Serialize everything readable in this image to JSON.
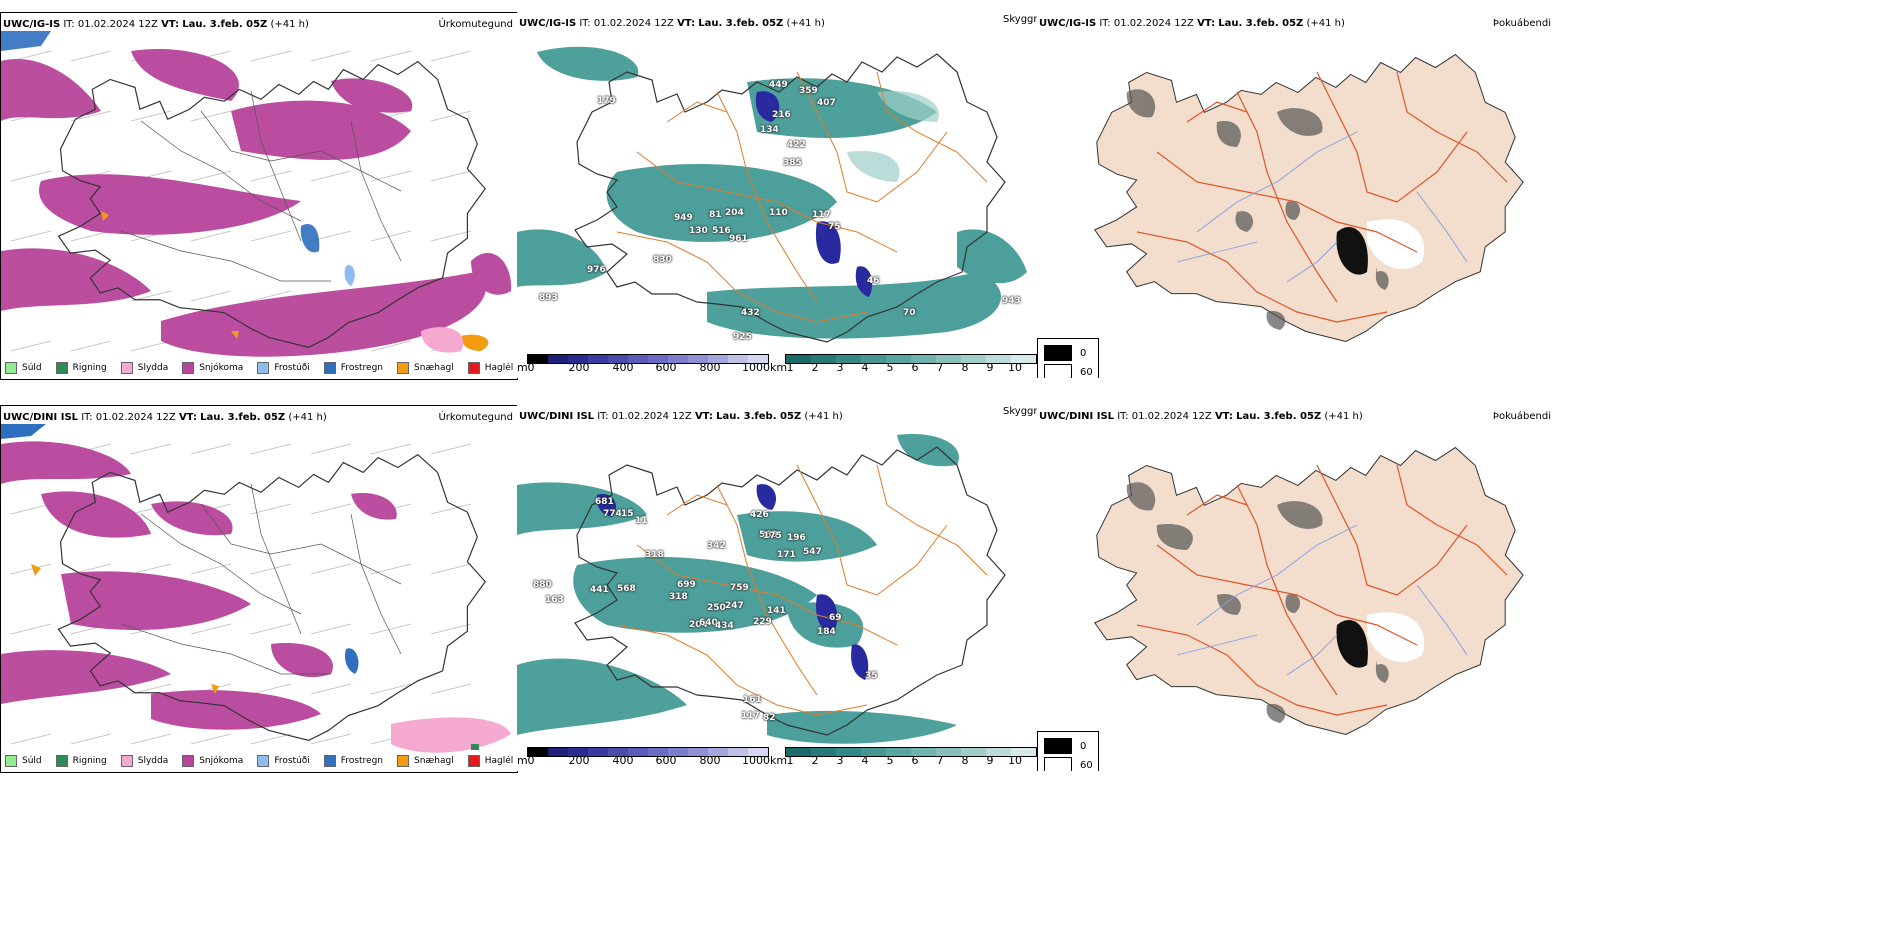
{
  "rows": [
    {
      "model": "UWC/IG-IS",
      "it": "IT: 01.02.2024 12Z",
      "vt_label": "VT:",
      "vt": "Lau. 3.feb. 05Z",
      "lead": "(+41 h)",
      "panels": {
        "precip": "Úrkomutegund",
        "visibility": "Skyggni",
        "fog": "Þokuábendi"
      },
      "visibility_labels": [
        "179",
        "449",
        "359",
        "407",
        "216",
        "134",
        "422",
        "385",
        "949",
        "81",
        "204",
        "130",
        "516",
        "961",
        "110",
        "117",
        "75",
        "830",
        "976",
        "893",
        "46",
        "432",
        "925",
        "943",
        "70"
      ]
    },
    {
      "model": "UWC/DINI ISL",
      "it": "IT: 01.02.2024 12Z",
      "vt_label": "VT:",
      "vt": "Lau. 3.feb. 05Z",
      "lead": "(+41 h)",
      "panels": {
        "precip": "Úrkomutegund",
        "visibility": "Skyggni",
        "fog": "Þokuábendi"
      },
      "visibility_labels": [
        "681",
        "774",
        "15",
        "11",
        "318",
        "342",
        "426",
        "563",
        "175",
        "196",
        "171",
        "547",
        "880",
        "441",
        "568",
        "699",
        "759",
        "163",
        "318",
        "250",
        "247",
        "141",
        "69",
        "184",
        "204",
        "640",
        "434",
        "229",
        "35",
        "161",
        "117",
        "82"
      ]
    }
  ],
  "precip_legend": [
    {
      "label": "Súld",
      "color": "#90ee90"
    },
    {
      "label": "Rigning",
      "color": "#2e8b57"
    },
    {
      "label": "Slydda",
      "color": "#f5a9d0"
    },
    {
      "label": "Snjókoma",
      "color": "#b8449b"
    },
    {
      "label": "Frostúði",
      "color": "#8fbcef"
    },
    {
      "label": "Frostregn",
      "color": "#2f6fbf"
    },
    {
      "label": "Snæhagl",
      "color": "#f39c12"
    },
    {
      "label": "Haglél",
      "color": "#e31a1c"
    }
  ],
  "visibility_scale_m": {
    "unit": "m",
    "ticks": [
      "0",
      "200",
      "400",
      "600",
      "800",
      "1000"
    ],
    "colors": [
      "#000000",
      "#1f1f7a",
      "#2a2a8f",
      "#3b3ba0",
      "#4b4bae",
      "#5b5bbb",
      "#6b6bc4",
      "#7d7dcd",
      "#9090d6",
      "#a6a6df",
      "#bfbfe8",
      "#d6d6f1"
    ]
  },
  "visibility_scale_km": {
    "unit": "km",
    "ticks": [
      "1",
      "2",
      "3",
      "4",
      "5",
      "6",
      "7",
      "8",
      "9",
      "10"
    ],
    "colors": [
      "#1b6b6b",
      "#277a78",
      "#348987",
      "#469794",
      "#5aa4a1",
      "#70b2ae",
      "#88c0bc",
      "#a1cecb",
      "#bbdcd9",
      "#d6ebe9"
    ]
  },
  "cloud_legend": [
    {
      "label": "0",
      "color": "#000000"
    },
    {
      "label": "60",
      "color": "#ffffff"
    }
  ],
  "colors": {
    "snow": "#b8449b",
    "vis_teal": "#2f8f8a",
    "vis_blue": "#2a2aa0",
    "roads": "#e07b2a",
    "fog_land": "#f3ddcc",
    "fog_roads": "#e0552a",
    "rivers": "#7f9fe6"
  }
}
